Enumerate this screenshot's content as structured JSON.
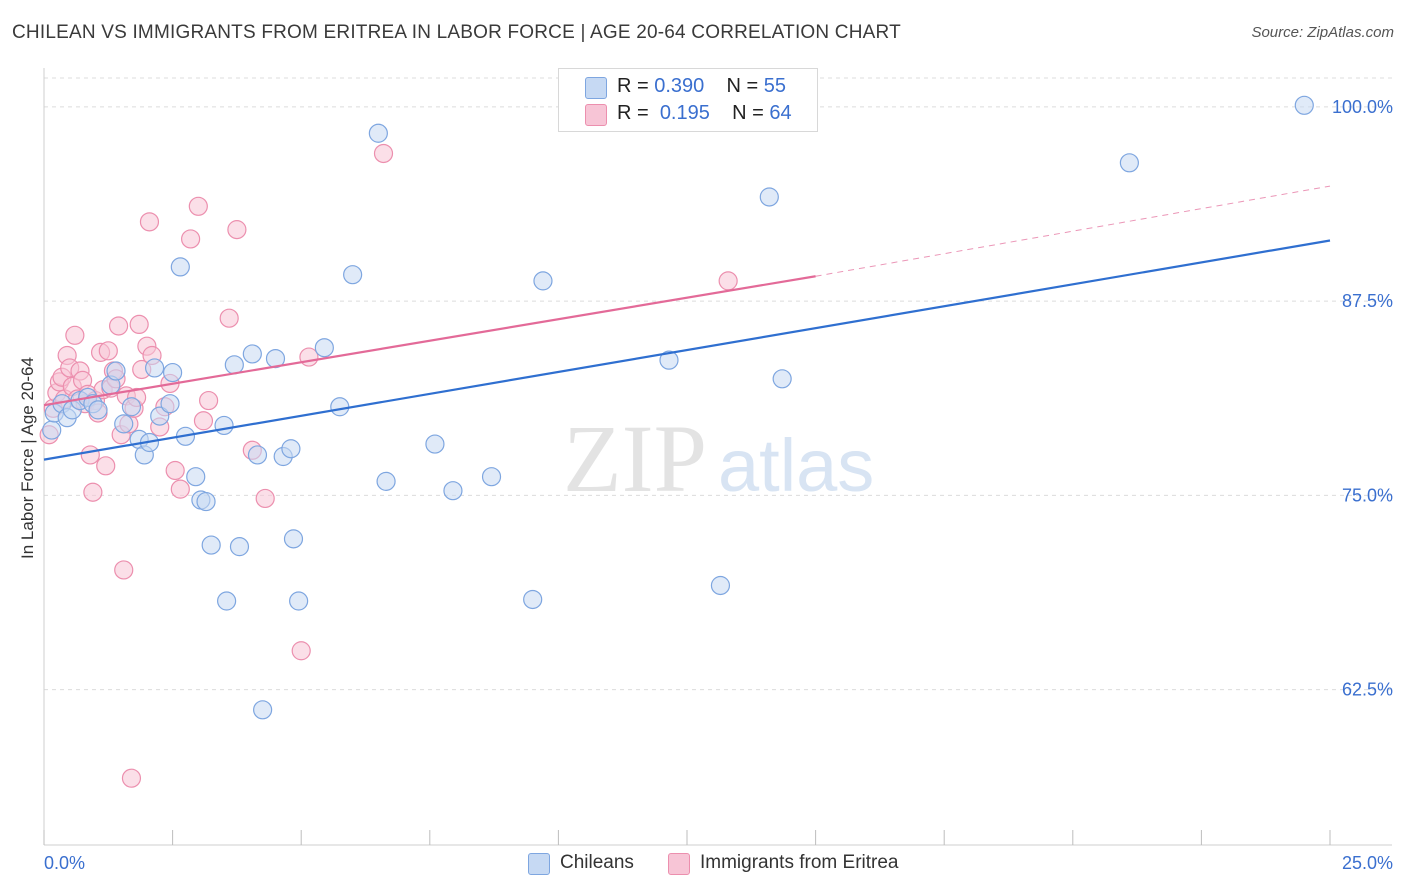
{
  "title": "CHILEAN VS IMMIGRANTS FROM ERITREA IN LABOR FORCE | AGE 20-64 CORRELATION CHART",
  "source": "Source: ZipAtlas.com",
  "watermark": {
    "zip": "ZIP",
    "atlas": "atlas"
  },
  "colors": {
    "blue_fill": "#c6d9f3",
    "blue_stroke": "#7ea6e0",
    "blue_line": "#2f6fd0",
    "pink_fill": "#f7c5d6",
    "pink_stroke": "#ec8fae",
    "pink_line": "#e36a98",
    "axis_text": "#3a6fcf",
    "grid": "#dcdcdc"
  },
  "legend_top": [
    {
      "r_label": "R =",
      "r_value": "0.390",
      "n_label": "N =",
      "n_value": "55"
    },
    {
      "r_label": "R =",
      "r_value": "0.195",
      "n_label": "N =",
      "n_value": "64"
    }
  ],
  "legend_bottom": [
    "Chileans",
    "Immigrants from Eritrea"
  ],
  "chart_data": {
    "type": "scatter",
    "title": "CHILEAN VS IMMIGRANTS FROM ERITREA IN LABOR FORCE | AGE 20-64 CORRELATION CHART",
    "xlabel": "",
    "ylabel": "In Labor Force | Age 20-64",
    "xlim": [
      0,
      25
    ],
    "ylim": [
      52.5,
      102.5
    ],
    "x_tick_labels": [
      "0.0%",
      "25.0%"
    ],
    "y_ticks": [
      62.5,
      75.0,
      87.5,
      100.0
    ],
    "y_tick_labels": [
      "62.5%",
      "75.0%",
      "87.5%",
      "100.0%"
    ],
    "grid": "horizontal dashed",
    "legend_placement": "top-center and bottom",
    "series": [
      {
        "name": "Chileans",
        "r": 0.39,
        "n": 55,
        "trend": {
          "x": [
            0,
            25
          ],
          "y": [
            77.3,
            91.4
          ]
        },
        "points": [
          [
            0.15,
            79.2
          ],
          [
            0.2,
            80.3
          ],
          [
            0.35,
            80.9
          ],
          [
            0.45,
            80.0
          ],
          [
            0.55,
            80.5
          ],
          [
            0.7,
            81.1
          ],
          [
            0.85,
            81.3
          ],
          [
            0.95,
            80.9
          ],
          [
            1.05,
            80.5
          ],
          [
            1.3,
            82.1
          ],
          [
            1.4,
            83.0
          ],
          [
            1.55,
            79.6
          ],
          [
            1.7,
            80.7
          ],
          [
            1.85,
            78.6
          ],
          [
            1.95,
            77.6
          ],
          [
            2.05,
            78.4
          ],
          [
            2.15,
            83.2
          ],
          [
            2.25,
            80.1
          ],
          [
            2.45,
            80.9
          ],
          [
            2.5,
            82.9
          ],
          [
            2.65,
            89.7
          ],
          [
            2.75,
            78.8
          ],
          [
            2.95,
            76.2
          ],
          [
            3.05,
            74.7
          ],
          [
            3.15,
            74.6
          ],
          [
            3.25,
            71.8
          ],
          [
            3.5,
            79.5
          ],
          [
            3.55,
            68.2
          ],
          [
            3.7,
            83.4
          ],
          [
            3.8,
            71.7
          ],
          [
            4.05,
            84.1
          ],
          [
            4.15,
            77.6
          ],
          [
            4.25,
            61.2
          ],
          [
            4.5,
            83.8
          ],
          [
            4.65,
            77.5
          ],
          [
            4.8,
            78.0
          ],
          [
            4.85,
            72.2
          ],
          [
            4.95,
            68.2
          ],
          [
            5.45,
            84.5
          ],
          [
            5.75,
            80.7
          ],
          [
            6.0,
            89.2
          ],
          [
            6.5,
            98.3
          ],
          [
            6.65,
            75.9
          ],
          [
            7.6,
            78.3
          ],
          [
            7.95,
            75.3
          ],
          [
            8.7,
            76.2
          ],
          [
            9.5,
            68.3
          ],
          [
            9.7,
            88.8
          ],
          [
            12.15,
            83.7
          ],
          [
            13.15,
            69.2
          ],
          [
            14.1,
            94.2
          ],
          [
            14.35,
            82.5
          ],
          [
            21.1,
            96.4
          ],
          [
            24.5,
            100.1
          ]
        ]
      },
      {
        "name": "Immigrants from Eritrea",
        "r": 0.195,
        "n": 64,
        "trend": {
          "x": [
            0,
            15
          ],
          "y": [
            80.8,
            89.1
          ]
        },
        "trend_extension": {
          "x": [
            15,
            25
          ],
          "y": [
            89.1,
            94.9
          ]
        },
        "points": [
          [
            0.1,
            78.9
          ],
          [
            0.18,
            80.6
          ],
          [
            0.25,
            81.6
          ],
          [
            0.3,
            82.3
          ],
          [
            0.35,
            82.6
          ],
          [
            0.4,
            81.2
          ],
          [
            0.45,
            84.0
          ],
          [
            0.5,
            83.2
          ],
          [
            0.55,
            82.0
          ],
          [
            0.6,
            85.3
          ],
          [
            0.65,
            81.2
          ],
          [
            0.7,
            83.0
          ],
          [
            0.75,
            82.4
          ],
          [
            0.8,
            80.9
          ],
          [
            0.85,
            81.5
          ],
          [
            0.9,
            77.6
          ],
          [
            0.95,
            75.2
          ],
          [
            1.0,
            81.1
          ],
          [
            1.05,
            80.3
          ],
          [
            1.1,
            84.2
          ],
          [
            1.15,
            81.8
          ],
          [
            1.2,
            76.9
          ],
          [
            1.25,
            84.3
          ],
          [
            1.3,
            81.9
          ],
          [
            1.35,
            83.0
          ],
          [
            1.4,
            82.5
          ],
          [
            1.45,
            85.9
          ],
          [
            1.5,
            78.9
          ],
          [
            1.55,
            70.2
          ],
          [
            1.6,
            81.4
          ],
          [
            1.65,
            79.6
          ],
          [
            1.7,
            56.8
          ],
          [
            1.75,
            80.6
          ],
          [
            1.8,
            81.3
          ],
          [
            1.85,
            86.0
          ],
          [
            1.9,
            83.1
          ],
          [
            2.0,
            84.6
          ],
          [
            2.05,
            92.6
          ],
          [
            2.1,
            84.0
          ],
          [
            2.25,
            79.4
          ],
          [
            2.35,
            80.7
          ],
          [
            2.45,
            82.2
          ],
          [
            2.55,
            76.6
          ],
          [
            2.65,
            75.4
          ],
          [
            2.85,
            91.5
          ],
          [
            3.0,
            93.6
          ],
          [
            3.1,
            79.8
          ],
          [
            3.2,
            81.1
          ],
          [
            3.6,
            86.4
          ],
          [
            3.75,
            92.1
          ],
          [
            4.05,
            77.9
          ],
          [
            4.3,
            74.8
          ],
          [
            5.0,
            65.0
          ],
          [
            5.15,
            83.9
          ],
          [
            6.6,
            97.0
          ],
          [
            13.3,
            88.8
          ]
        ]
      }
    ]
  }
}
